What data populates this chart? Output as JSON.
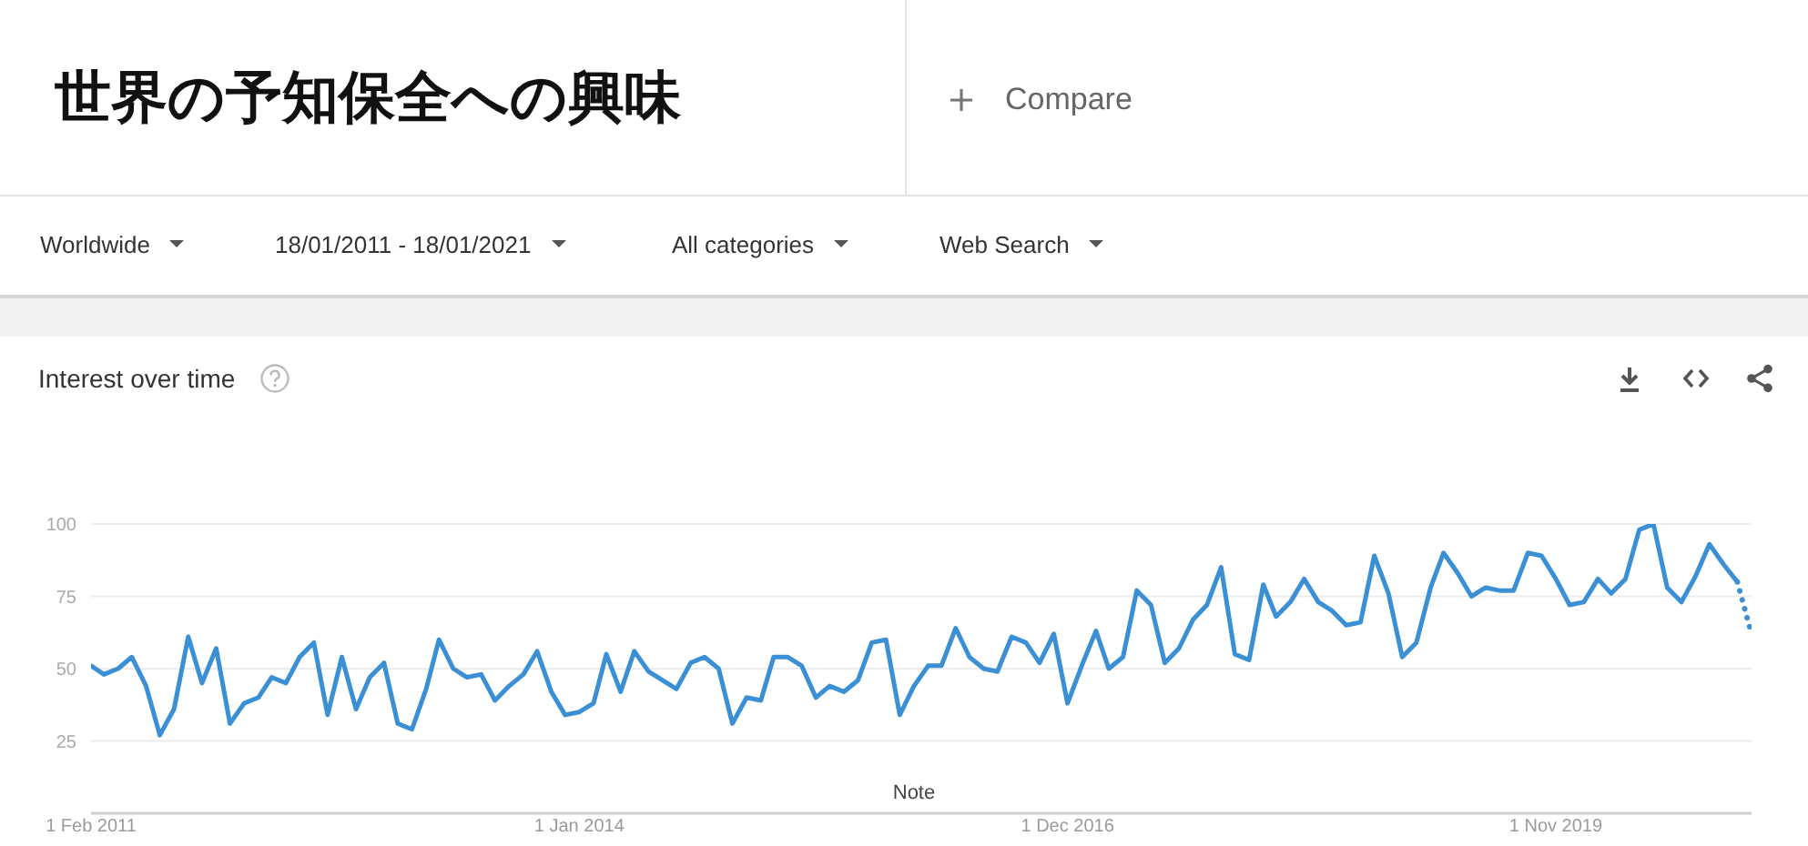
{
  "chart_data": {
    "type": "line",
    "title": "世界の予知保全への興味",
    "subtitle": "Interest over time",
    "annotations": [
      "Compare",
      "Worldwide",
      "18/01/2011 - 18/01/2021",
      "All categories",
      "Web Search",
      "Note"
    ],
    "x": [
      "2011-02",
      "2011-03",
      "2011-04",
      "2011-05",
      "2011-06",
      "2011-07",
      "2011-08",
      "2011-09",
      "2011-10",
      "2011-11",
      "2011-12",
      "2012-01",
      "2012-02",
      "2012-03",
      "2012-04",
      "2012-05",
      "2012-06",
      "2012-07",
      "2012-08",
      "2012-09",
      "2012-10",
      "2012-11",
      "2012-12",
      "2013-01",
      "2013-02",
      "2013-03",
      "2013-04",
      "2013-05",
      "2013-06",
      "2013-07",
      "2013-08",
      "2013-09",
      "2013-10",
      "2013-11",
      "2013-12",
      "2014-01",
      "2014-02",
      "2014-03",
      "2014-04",
      "2014-05",
      "2014-06",
      "2014-07",
      "2014-08",
      "2014-09",
      "2014-10",
      "2014-11",
      "2014-12",
      "2015-01",
      "2015-02",
      "2015-03",
      "2015-04",
      "2015-05",
      "2015-06",
      "2015-07",
      "2015-08",
      "2015-09",
      "2015-10",
      "2015-11",
      "2015-12",
      "2016-01",
      "2016-02",
      "2016-03",
      "2016-04",
      "2016-05",
      "2016-06",
      "2016-07",
      "2016-08",
      "2016-09",
      "2016-10",
      "2016-11",
      "2016-12",
      "2017-01",
      "2017-02",
      "2017-03",
      "2017-04",
      "2017-05",
      "2017-06",
      "2017-07",
      "2017-08",
      "2017-09",
      "2017-10",
      "2017-11",
      "2017-12",
      "2018-01",
      "2018-02",
      "2018-03",
      "2018-04",
      "2018-05",
      "2018-06",
      "2018-07",
      "2018-08",
      "2018-09",
      "2018-10",
      "2018-11",
      "2018-12",
      "2019-01",
      "2019-02",
      "2019-03",
      "2019-04",
      "2019-05",
      "2019-06",
      "2019-07",
      "2019-08",
      "2019-09",
      "2019-10",
      "2019-11",
      "2019-12",
      "2020-01",
      "2020-02",
      "2020-03",
      "2020-04",
      "2020-05",
      "2020-06",
      "2020-07",
      "2020-08",
      "2020-09",
      "2020-10",
      "2020-11",
      "2020-12"
    ],
    "series": [
      {
        "color": "#3b8fd4",
        "values": [
          51,
          48,
          50,
          54,
          44,
          27,
          36,
          61,
          45,
          57,
          31,
          38,
          40,
          47,
          45,
          54,
          59,
          34,
          54,
          36,
          47,
          52,
          31,
          29,
          43,
          60,
          50,
          47,
          48,
          39,
          44,
          48,
          56,
          42,
          34,
          35,
          38,
          55,
          42,
          56,
          49,
          46,
          43,
          52,
          54,
          50,
          31,
          40,
          39,
          54,
          54,
          51,
          40,
          44,
          42,
          46,
          59,
          60,
          34,
          44,
          51,
          51,
          64,
          54,
          50,
          49,
          61,
          59,
          52,
          62,
          38,
          51,
          63,
          50,
          54,
          77,
          72,
          52,
          57,
          67,
          72,
          85,
          55,
          53,
          79,
          68,
          73,
          81,
          73,
          70,
          65,
          66,
          89,
          76,
          54,
          59,
          78,
          90,
          83,
          75,
          78,
          77,
          77,
          90,
          89,
          81,
          72,
          73,
          81,
          76,
          81,
          98,
          100,
          78,
          73,
          82,
          93,
          86,
          80
        ]
      },
      {
        "color": "#3b8fd4",
        "line_style": "dotted",
        "x": [
          "2020-12",
          "2021-01"
        ],
        "values": [
          80,
          62
        ]
      }
    ],
    "xlim": [
      "2011-02",
      "2021-01"
    ],
    "xticks": [
      {
        "value": "2011-02-01",
        "label": "1 Feb 2011"
      },
      {
        "value": "2014-01-01",
        "label": "1 Jan 2014"
      },
      {
        "value": "2016-12-01",
        "label": "1 Dec 2016"
      },
      {
        "value": "2019-11-01",
        "label": "1 Nov 2019"
      }
    ],
    "ylim": [
      0,
      100
    ],
    "yticks": [
      25,
      50,
      75,
      100
    ],
    "grid": "y",
    "line_style": "solid"
  }
}
